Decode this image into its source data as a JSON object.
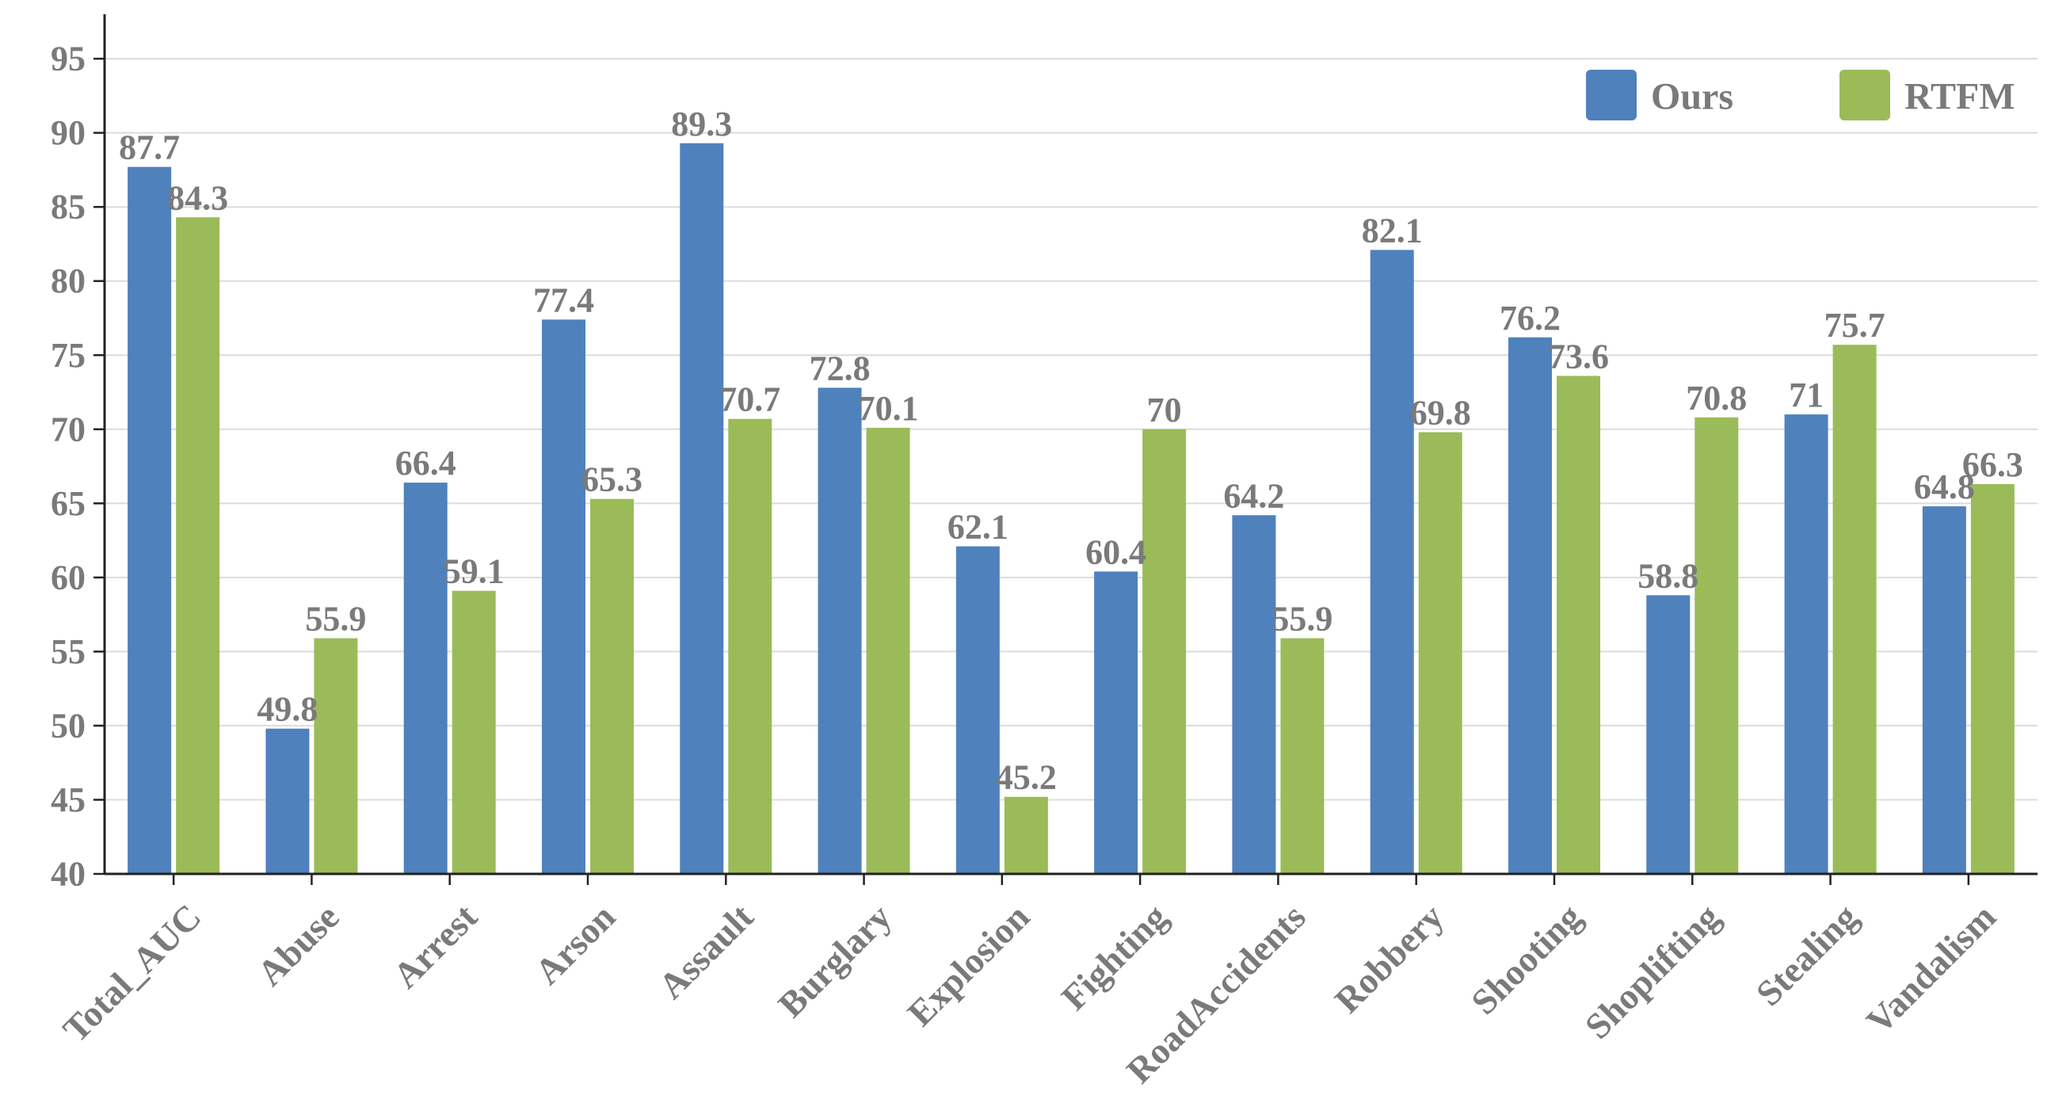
{
  "chart_data": {
    "type": "bar",
    "title": "",
    "xlabel": "",
    "ylabel": "",
    "ylim": [
      40,
      98
    ],
    "yticks": [
      40,
      45,
      50,
      55,
      60,
      65,
      70,
      75,
      80,
      85,
      90,
      95
    ],
    "grid": true,
    "legend_position": "top-right",
    "categories": [
      "Total_AUC",
      "Abuse",
      "Arrest",
      "Arson",
      "Assault",
      "Burglary",
      "Explosion",
      "Fighting",
      "RoadAccidents",
      "Robbery",
      "Shooting",
      "Shoplifting",
      "Stealing",
      "Vandalism"
    ],
    "series": [
      {
        "name": "Ours",
        "color": "#4f81bd",
        "values": [
          87.7,
          49.8,
          66.4,
          77.4,
          89.3,
          72.8,
          62.1,
          60.4,
          64.2,
          82.1,
          76.2,
          58.8,
          71,
          64.8
        ],
        "labels": [
          "87.7",
          "49.8",
          "66.4",
          "77.4",
          "89.3",
          "72.8",
          "62.1",
          "60.4",
          "64.2",
          "82.1",
          "76.2",
          "58.8",
          "71",
          "64.8"
        ]
      },
      {
        "name": "RTFM",
        "color": "#9bbb59",
        "values": [
          84.3,
          55.9,
          59.1,
          65.3,
          70.7,
          70.1,
          45.2,
          70,
          55.9,
          69.8,
          73.6,
          70.8,
          75.7,
          66.3
        ],
        "labels": [
          "84.3",
          "55.9",
          "59.1",
          "65.3",
          "70.7",
          "70.1",
          "45.2",
          "70",
          "55.9",
          "69.8",
          "73.6",
          "70.8",
          "75.7",
          "66.3"
        ]
      }
    ]
  }
}
